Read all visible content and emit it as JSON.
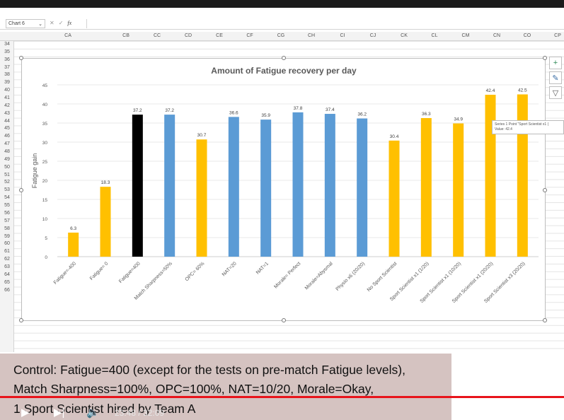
{
  "formula_bar": {
    "name_box": "Chart 6",
    "fx": "fx",
    "cancel": "✕",
    "enter": "✓"
  },
  "columns": [
    "CA",
    "CB",
    "CC",
    "CD",
    "CE",
    "CF",
    "CG",
    "CH",
    "CI",
    "CJ",
    "CK",
    "CL",
    "CM",
    "CN",
    "CO",
    "CP"
  ],
  "rows": [
    "34",
    "35",
    "36",
    "37",
    "38",
    "39",
    "40",
    "41",
    "42",
    "43",
    "44",
    "45",
    "46",
    "47",
    "48",
    "49",
    "50",
    "51",
    "52",
    "53",
    "54",
    "55",
    "56",
    "57",
    "58",
    "59",
    "60",
    "61",
    "62",
    "63",
    "64",
    "65",
    "66"
  ],
  "tooltip": {
    "line1": "Series 1 Point \"Sport Scientist x1 (",
    "line2": "Value: 42.4"
  },
  "caption": {
    "line1": "Control: Fatigue=400 (except for the tests on pre-match Fatigue levels),",
    "line2": "Match Sharpness=100%, OPC=100%, NAT=10/20, Morale=Okay,",
    "line3": "1 Sport Scientist hired by Team A"
  },
  "player": {
    "time": "23:48 / 32:09"
  },
  "chart_data": {
    "type": "bar",
    "title": "Amount of Fatigue recovery per day",
    "ylabel": "Fatigue gain",
    "xlabel": "",
    "ylim": [
      0,
      45
    ],
    "yticks": [
      0,
      5,
      10,
      15,
      20,
      25,
      30,
      35,
      40,
      45
    ],
    "grid": true,
    "legend": "none",
    "categories": [
      "Fatigue=-400",
      "Fatigue= 0",
      "Fatigue=400",
      "Match Sharpness=50%",
      "OPC= 60%",
      "NAT=20",
      "NAT=1",
      "Morale= Perfect",
      "Morale=Abysmal",
      "Physio x6 (20/20)",
      "No Sport Scientist",
      "Sport Scientist x1 (1/20)",
      "Sport Scientist x1 (10/20)",
      "Sport Scientist x1 (20/20)",
      "Sport Scientist x3 (20/20)"
    ],
    "values": [
      6.3,
      18.3,
      37.2,
      37.2,
      30.7,
      36.6,
      35.9,
      37.8,
      37.4,
      36.2,
      30.4,
      36.3,
      34.9,
      42.4,
      42.5
    ],
    "colors": [
      "#ffc000",
      "#ffc000",
      "#000000",
      "#5b9bd5",
      "#ffc000",
      "#5b9bd5",
      "#5b9bd5",
      "#5b9bd5",
      "#5b9bd5",
      "#5b9bd5",
      "#ffc000",
      "#ffc000",
      "#ffc000",
      "#ffc000",
      "#ffc000"
    ]
  }
}
